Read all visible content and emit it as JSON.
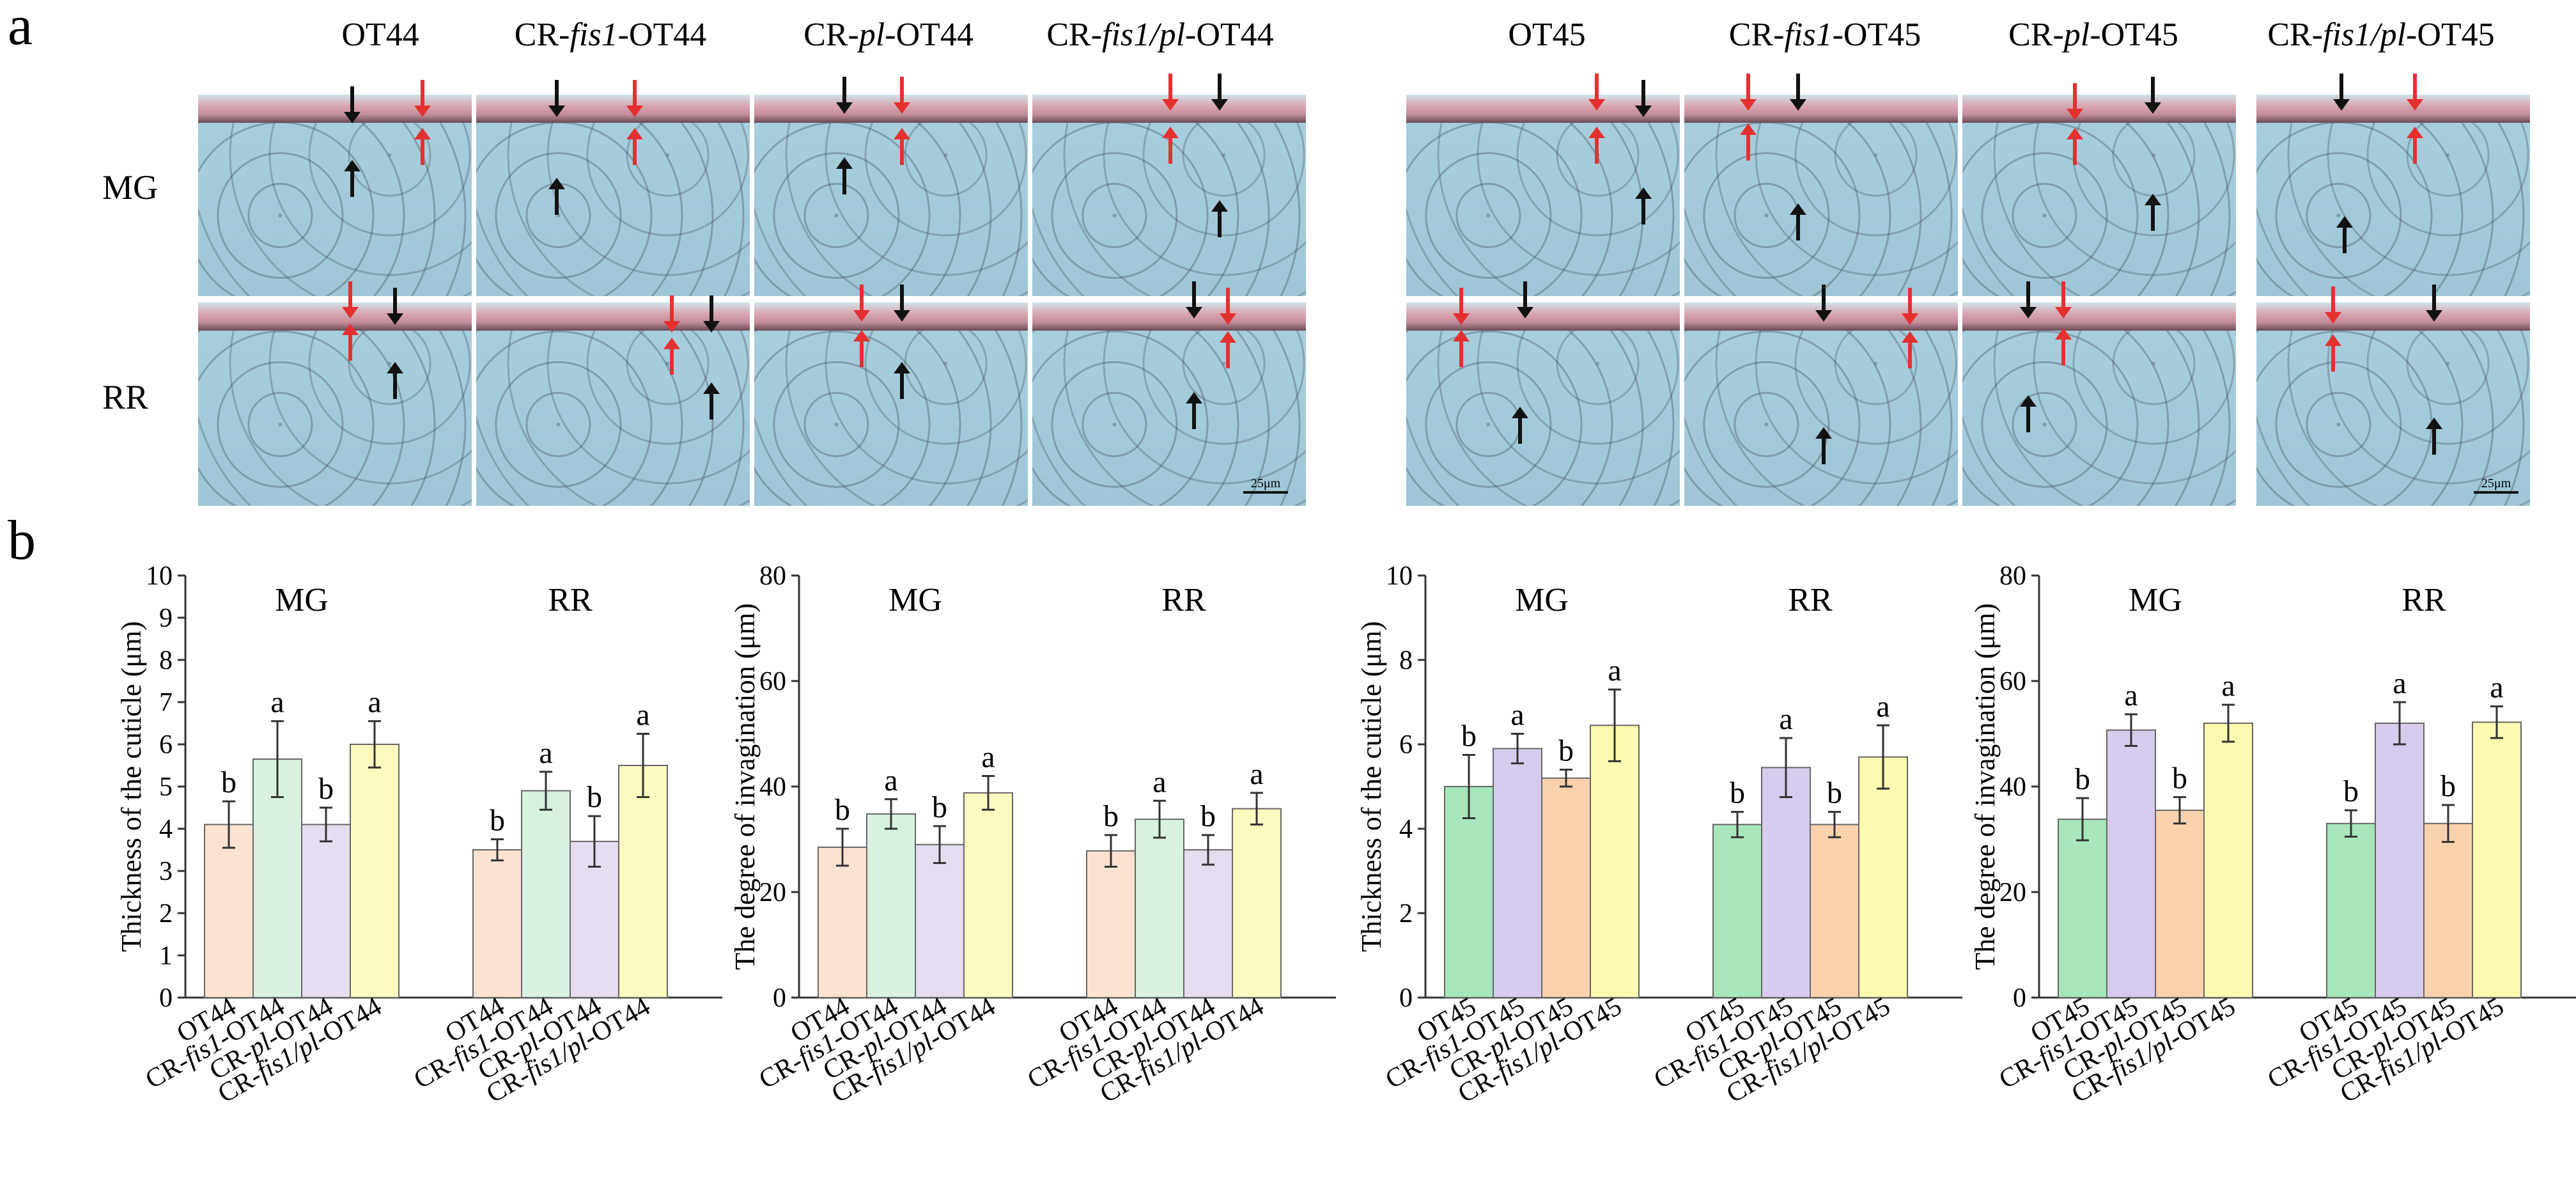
{
  "panel_labels": {
    "a": "a",
    "b": "b"
  },
  "micrographs": {
    "group1": {
      "columns": [
        {
          "prefix": "OT44",
          "italic": "",
          "suffix": ""
        },
        {
          "prefix": "CR-",
          "italic": "fis1",
          "suffix": "-OT44"
        },
        {
          "prefix": "CR-",
          "italic": "pl",
          "suffix": "-OT44"
        },
        {
          "prefix": "CR-",
          "italic": "fis1/pl",
          "suffix": "-OT44"
        }
      ],
      "scale_bar": "25μm"
    },
    "group2": {
      "columns": [
        {
          "prefix": "OT45",
          "italic": "",
          "suffix": ""
        },
        {
          "prefix": "CR-",
          "italic": "fis1",
          "suffix": "-OT45"
        },
        {
          "prefix": "CR-",
          "italic": "pl",
          "suffix": "-OT45"
        },
        {
          "prefix": "CR-",
          "italic": "fis1/pl",
          "suffix": "-OT45"
        }
      ],
      "scale_bar": "25μm"
    },
    "rows": [
      "MG",
      "RR"
    ]
  },
  "colors": {
    "peach": "#fce3d1",
    "mint": "#d7f3df",
    "lavender": "#e6dcf0",
    "cream": "#fcfbbf",
    "green": "#a8e6bc",
    "purple": "#d7cced",
    "orange": "#f9d1ad",
    "yellow": "#fbfab0"
  },
  "chart_data": [
    {
      "type": "bar",
      "ylabel": "Thickness of the cuticle (μm)",
      "ylim": [
        0,
        10
      ],
      "yticks": [
        0,
        1,
        2,
        3,
        4,
        5,
        6,
        7,
        8,
        9,
        10
      ],
      "groups": [
        "MG",
        "RR"
      ],
      "categories": [
        {
          "prefix": "OT44",
          "italic": "",
          "suffix": ""
        },
        {
          "prefix": "CR-",
          "italic": "fis1",
          "suffix": "-OT44"
        },
        {
          "prefix": "CR-",
          "italic": "pl",
          "suffix": "-OT44"
        },
        {
          "prefix": "CR-",
          "italic": "fis1/pl",
          "suffix": "-OT44"
        }
      ],
      "bar_colors": [
        "peach",
        "mint",
        "lavender",
        "cream"
      ],
      "series": [
        {
          "name": "MG",
          "values": [
            4.1,
            5.65,
            4.1,
            6.0
          ],
          "errors": [
            0.55,
            0.9,
            0.4,
            0.55
          ],
          "letters": [
            "b",
            "a",
            "b",
            "a"
          ]
        },
        {
          "name": "RR",
          "values": [
            3.5,
            4.9,
            3.7,
            5.5
          ],
          "errors": [
            0.25,
            0.45,
            0.6,
            0.75
          ],
          "letters": [
            "b",
            "a",
            "b",
            "a"
          ]
        }
      ]
    },
    {
      "type": "bar",
      "ylabel": "The degree of invagination (μm)",
      "ylim": [
        0,
        80
      ],
      "yticks": [
        0,
        20,
        40,
        60,
        80
      ],
      "groups": [
        "MG",
        "RR"
      ],
      "categories": [
        {
          "prefix": "OT44",
          "italic": "",
          "suffix": ""
        },
        {
          "prefix": "CR-",
          "italic": "fis1",
          "suffix": "-OT44"
        },
        {
          "prefix": "CR-",
          "italic": "pl",
          "suffix": "-OT44"
        },
        {
          "prefix": "CR-",
          "italic": "fis1/pl",
          "suffix": "-OT44"
        }
      ],
      "bar_colors": [
        "peach",
        "mint",
        "lavender",
        "cream"
      ],
      "series": [
        {
          "name": "MG",
          "values": [
            28.5,
            34.8,
            29.0,
            38.8
          ],
          "errors": [
            3.5,
            2.8,
            3.5,
            3.2
          ],
          "letters": [
            "b",
            "a",
            "b",
            "a"
          ]
        },
        {
          "name": "RR",
          "values": [
            27.8,
            33.8,
            28.0,
            35.8
          ],
          "errors": [
            3.0,
            3.5,
            2.8,
            3.0
          ],
          "letters": [
            "b",
            "a",
            "b",
            "a"
          ]
        }
      ]
    },
    {
      "type": "bar",
      "ylabel": "Thickness of the cuticle (μm)",
      "ylim": [
        0,
        10
      ],
      "yticks": [
        0,
        2,
        4,
        6,
        8,
        10
      ],
      "groups": [
        "MG",
        "RR"
      ],
      "categories": [
        {
          "prefix": "OT45",
          "italic": "",
          "suffix": ""
        },
        {
          "prefix": "CR-",
          "italic": "fis1",
          "suffix": "-OT45"
        },
        {
          "prefix": "CR-",
          "italic": "pl",
          "suffix": "-OT45"
        },
        {
          "prefix": "CR-",
          "italic": "fis1/pl",
          "suffix": "-OT45"
        }
      ],
      "bar_colors": [
        "green",
        "purple",
        "orange",
        "yellow"
      ],
      "series": [
        {
          "name": "MG",
          "values": [
            5.0,
            5.9,
            5.2,
            6.45
          ],
          "errors": [
            0.75,
            0.35,
            0.2,
            0.85
          ],
          "letters": [
            "b",
            "a",
            "b",
            "a"
          ]
        },
        {
          "name": "RR",
          "values": [
            4.1,
            5.45,
            4.1,
            5.7
          ],
          "errors": [
            0.3,
            0.7,
            0.3,
            0.75
          ],
          "letters": [
            "b",
            "a",
            "b",
            "a"
          ]
        }
      ]
    },
    {
      "type": "bar",
      "ylabel": "The degree of invagination (μm)",
      "ylim": [
        0,
        80
      ],
      "yticks": [
        0,
        20,
        40,
        60,
        80
      ],
      "groups": [
        "MG",
        "RR"
      ],
      "categories": [
        {
          "prefix": "OT45",
          "italic": "",
          "suffix": ""
        },
        {
          "prefix": "CR-",
          "italic": "fis1",
          "suffix": "-OT45"
        },
        {
          "prefix": "CR-",
          "italic": "pl",
          "suffix": "-OT45"
        },
        {
          "prefix": "CR-",
          "italic": "fis1/pl",
          "suffix": "-OT45"
        }
      ],
      "bar_colors": [
        "green",
        "purple",
        "orange",
        "yellow"
      ],
      "series": [
        {
          "name": "MG",
          "values": [
            33.8,
            50.7,
            35.5,
            52.0
          ],
          "errors": [
            4.0,
            3.0,
            2.5,
            3.5
          ],
          "letters": [
            "b",
            "a",
            "b",
            "a"
          ]
        },
        {
          "name": "RR",
          "values": [
            33.0,
            52.0,
            33.0,
            52.2
          ],
          "errors": [
            2.5,
            4.0,
            3.5,
            3.0
          ],
          "letters": [
            "b",
            "a",
            "b",
            "a"
          ]
        }
      ]
    }
  ]
}
